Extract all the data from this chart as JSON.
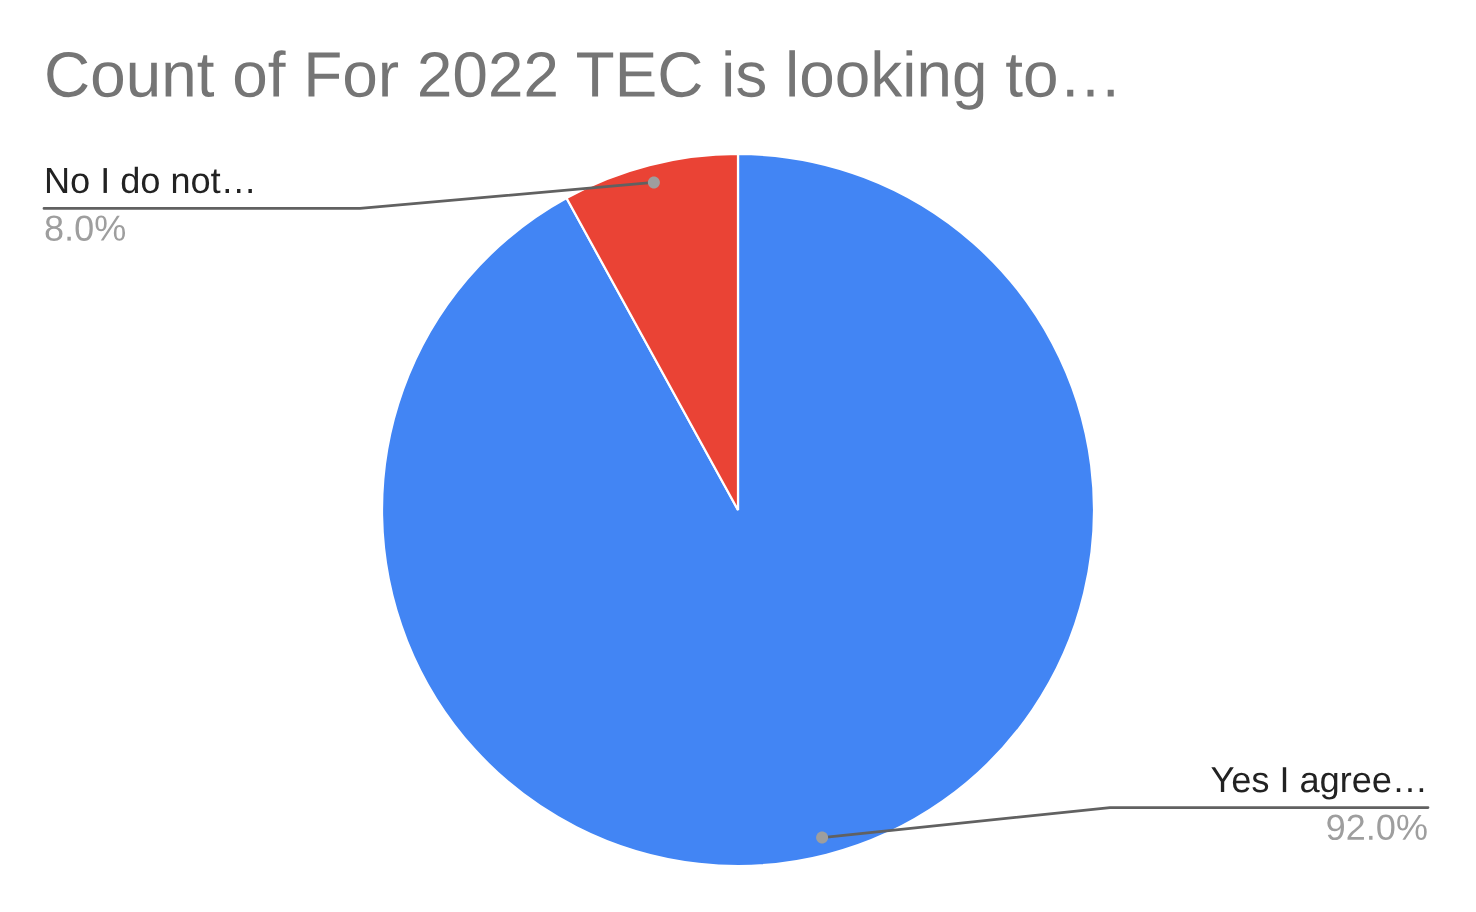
{
  "chart_data": {
    "type": "pie",
    "title": "Count of For 2022 TEC is looking to…",
    "categories": [
      "Yes I agree…",
      "No I do not…"
    ],
    "values": [
      92,
      8
    ],
    "colors": [
      "#4285f4",
      "#ea4335"
    ],
    "value_labels": [
      "92.0%",
      "8.0%"
    ],
    "legend": false
  }
}
